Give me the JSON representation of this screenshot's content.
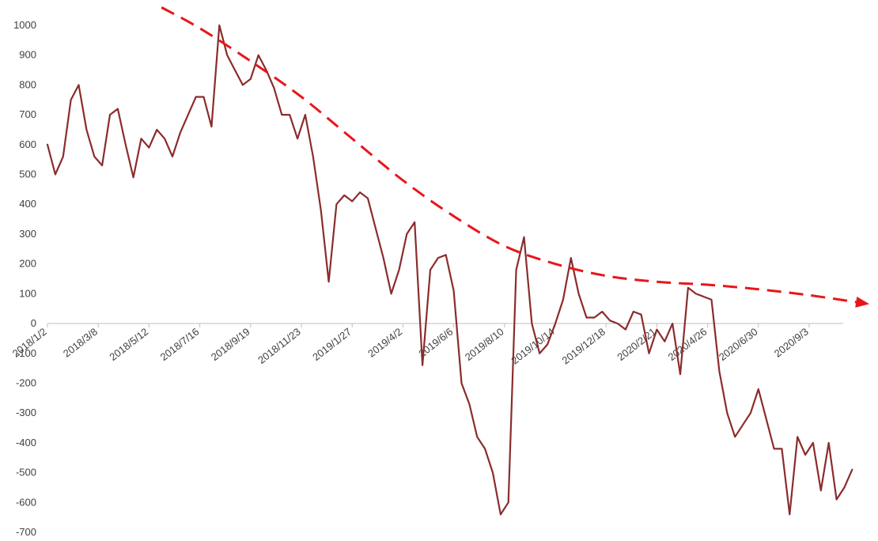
{
  "chart_data": {
    "type": "line",
    "title": "",
    "xlabel": "",
    "ylabel": "",
    "ylim": [
      -700,
      1000
    ],
    "y_ticks": [
      1000,
      900,
      800,
      700,
      600,
      500,
      400,
      300,
      200,
      100,
      0,
      -100,
      -200,
      -300,
      -400,
      -500,
      -600,
      -700
    ],
    "x_tick_labels": [
      "2018/1/2",
      "2018/3/8",
      "2018/5/12",
      "2018/7/16",
      "2018/9/19",
      "2018/11/23",
      "2019/1/27",
      "2019/4/2",
      "2019/6/6",
      "2019/8/10",
      "2019/10/14",
      "2019/12/18",
      "2020/2/21",
      "2020/4/26",
      "2020/6/30",
      "2020/9/3"
    ],
    "grid": false,
    "legend": "none",
    "series": [
      {
        "color": "#8B2C2C",
        "x": [
          "2018/1/2",
          "2018/1/12",
          "2018/1/22",
          "2018/2/1",
          "2018/2/11",
          "2018/2/21",
          "2018/3/3",
          "2018/3/13",
          "2018/3/23",
          "2018/4/2",
          "2018/4/12",
          "2018/4/22",
          "2018/5/2",
          "2018/5/12",
          "2018/5/22",
          "2018/6/1",
          "2018/6/11",
          "2018/6/21",
          "2018/7/1",
          "2018/7/11",
          "2018/7/21",
          "2018/7/31",
          "2018/8/10",
          "2018/8/20",
          "2018/8/30",
          "2018/9/9",
          "2018/9/19",
          "2018/9/29",
          "2018/10/9",
          "2018/10/19",
          "2018/10/29",
          "2018/11/8",
          "2018/11/18",
          "2018/11/28",
          "2018/12/8",
          "2018/12/18",
          "2018/12/28",
          "2019/1/7",
          "2019/1/17",
          "2019/1/27",
          "2019/2/6",
          "2019/2/16",
          "2019/2/26",
          "2019/3/8",
          "2019/3/18",
          "2019/3/28",
          "2019/4/7",
          "2019/4/17",
          "2019/4/27",
          "2019/5/7",
          "2019/5/17",
          "2019/5/27",
          "2019/6/6",
          "2019/6/16",
          "2019/6/26",
          "2019/7/6",
          "2019/7/16",
          "2019/7/26",
          "2019/8/5",
          "2019/8/15",
          "2019/8/25",
          "2019/9/4",
          "2019/9/14",
          "2019/9/24",
          "2019/10/4",
          "2019/10/14",
          "2019/10/24",
          "2019/11/3",
          "2019/11/13",
          "2019/11/23",
          "2019/12/3",
          "2019/12/13",
          "2019/12/23",
          "2020/1/2",
          "2020/1/12",
          "2020/1/22",
          "2020/2/1",
          "2020/2/11",
          "2020/2/21",
          "2020/3/2",
          "2020/3/12",
          "2020/3/22",
          "2020/4/1",
          "2020/4/11",
          "2020/4/21",
          "2020/5/1",
          "2020/5/11",
          "2020/5/21",
          "2020/5/31",
          "2020/6/10",
          "2020/6/20",
          "2020/6/30",
          "2020/7/10",
          "2020/7/20",
          "2020/7/30",
          "2020/8/9",
          "2020/8/19",
          "2020/8/29",
          "2020/9/8",
          "2020/9/18",
          "2020/9/28",
          "2020/10/8",
          "2020/10/18",
          "2020/10/28"
        ],
        "values": [
          600,
          500,
          560,
          750,
          800,
          650,
          560,
          530,
          700,
          720,
          600,
          490,
          620,
          590,
          650,
          620,
          560,
          640,
          700,
          760,
          760,
          660,
          1000,
          900,
          850,
          800,
          820,
          900,
          850,
          790,
          700,
          700,
          620,
          700,
          560,
          380,
          140,
          400,
          430,
          410,
          440,
          420,
          320,
          220,
          100,
          180,
          300,
          340,
          -140,
          180,
          220,
          230,
          110,
          -200,
          -270,
          -380,
          -420,
          -500,
          -640,
          -600,
          180,
          290,
          0,
          -100,
          -70,
          0,
          80,
          220,
          100,
          20,
          20,
          40,
          10,
          0,
          -20,
          40,
          30,
          -100,
          -20,
          -60,
          0,
          -170,
          120,
          100,
          90,
          80,
          -160,
          -300,
          -380,
          -340,
          -300,
          -220,
          -320,
          -420,
          -420,
          -640,
          -380,
          -440,
          -400,
          -560,
          -400,
          -590,
          -550,
          -490
        ]
      },
      {
        "color": "#E8161B",
        "dashed": true,
        "role": "trend",
        "x": [
          "2018/5/28",
          "2018/7/16",
          "2018/9/19",
          "2018/11/23",
          "2019/1/27",
          "2019/4/2",
          "2019/6/6",
          "2019/8/10",
          "2019/10/14",
          "2019/12/18",
          "2020/2/21",
          "2020/4/26",
          "2020/6/30",
          "2020/9/3",
          "2020/11/7"
        ],
        "values": [
          1060,
          990,
          880,
          760,
          620,
          480,
          360,
          260,
          200,
          160,
          140,
          130,
          115,
          95,
          70
        ]
      }
    ]
  }
}
